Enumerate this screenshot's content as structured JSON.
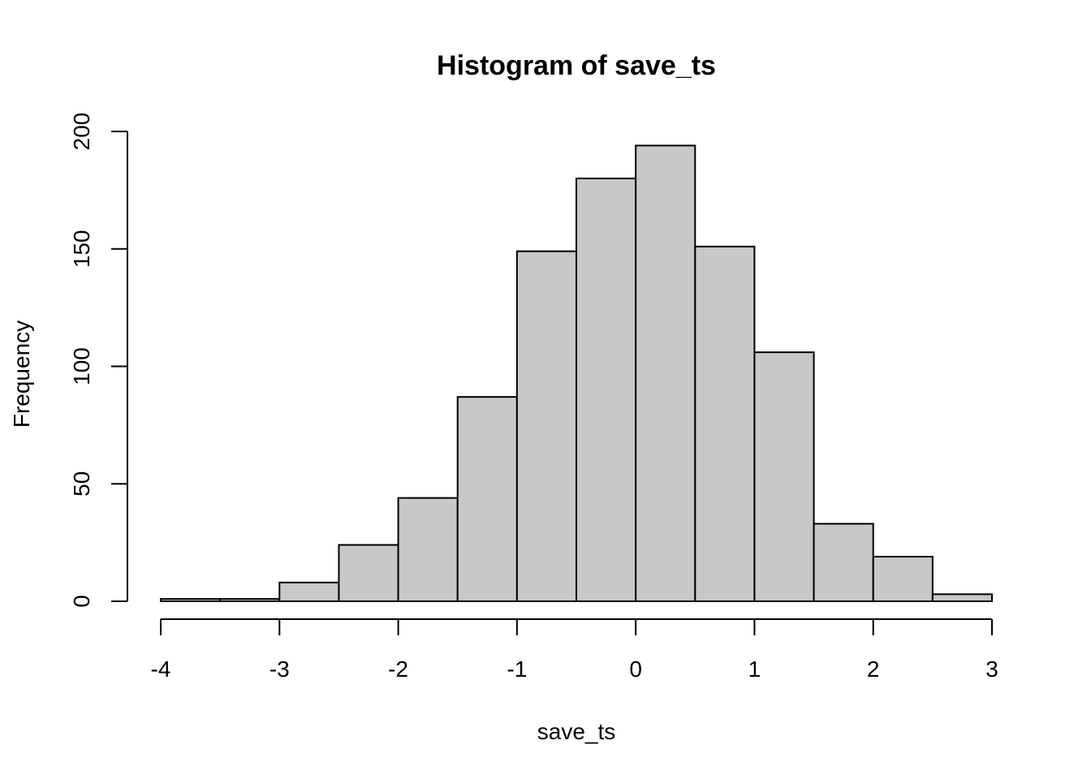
{
  "chart_data": {
    "type": "bar",
    "title": "Histogram of save_ts",
    "xlabel": "save_ts",
    "ylabel": "Frequency",
    "bins": [
      {
        "x0": -4.0,
        "x1": -3.5,
        "count": 1
      },
      {
        "x0": -3.5,
        "x1": -3.0,
        "count": 1
      },
      {
        "x0": -3.0,
        "x1": -2.5,
        "count": 8
      },
      {
        "x0": -2.5,
        "x1": -2.0,
        "count": 24
      },
      {
        "x0": -2.0,
        "x1": -1.5,
        "count": 44
      },
      {
        "x0": -1.5,
        "x1": -1.0,
        "count": 87
      },
      {
        "x0": -1.0,
        "x1": -0.5,
        "count": 149
      },
      {
        "x0": -0.5,
        "x1": 0.0,
        "count": 180
      },
      {
        "x0": 0.0,
        "x1": 0.5,
        "count": 194
      },
      {
        "x0": 0.5,
        "x1": 1.0,
        "count": 151
      },
      {
        "x0": 1.0,
        "x1": 1.5,
        "count": 106
      },
      {
        "x0": 1.5,
        "x1": 2.0,
        "count": 33
      },
      {
        "x0": 2.0,
        "x1": 2.5,
        "count": 19
      },
      {
        "x0": 2.5,
        "x1": 3.0,
        "count": 3
      }
    ],
    "xlim": [
      -4,
      3
    ],
    "ylim": [
      0,
      200
    ],
    "x_ticks": [
      -4,
      -3,
      -2,
      -1,
      0,
      1,
      2,
      3
    ],
    "x_tick_labels": [
      "-4",
      "-3",
      "-2",
      "-1",
      "0",
      "1",
      "2",
      "3"
    ],
    "y_ticks": [
      0,
      50,
      100,
      150,
      200
    ],
    "y_tick_labels": [
      "0",
      "50",
      "100",
      "150",
      "200"
    ],
    "bar_color": "#c8c8c8",
    "edge_color": "#000000",
    "grid": false
  }
}
